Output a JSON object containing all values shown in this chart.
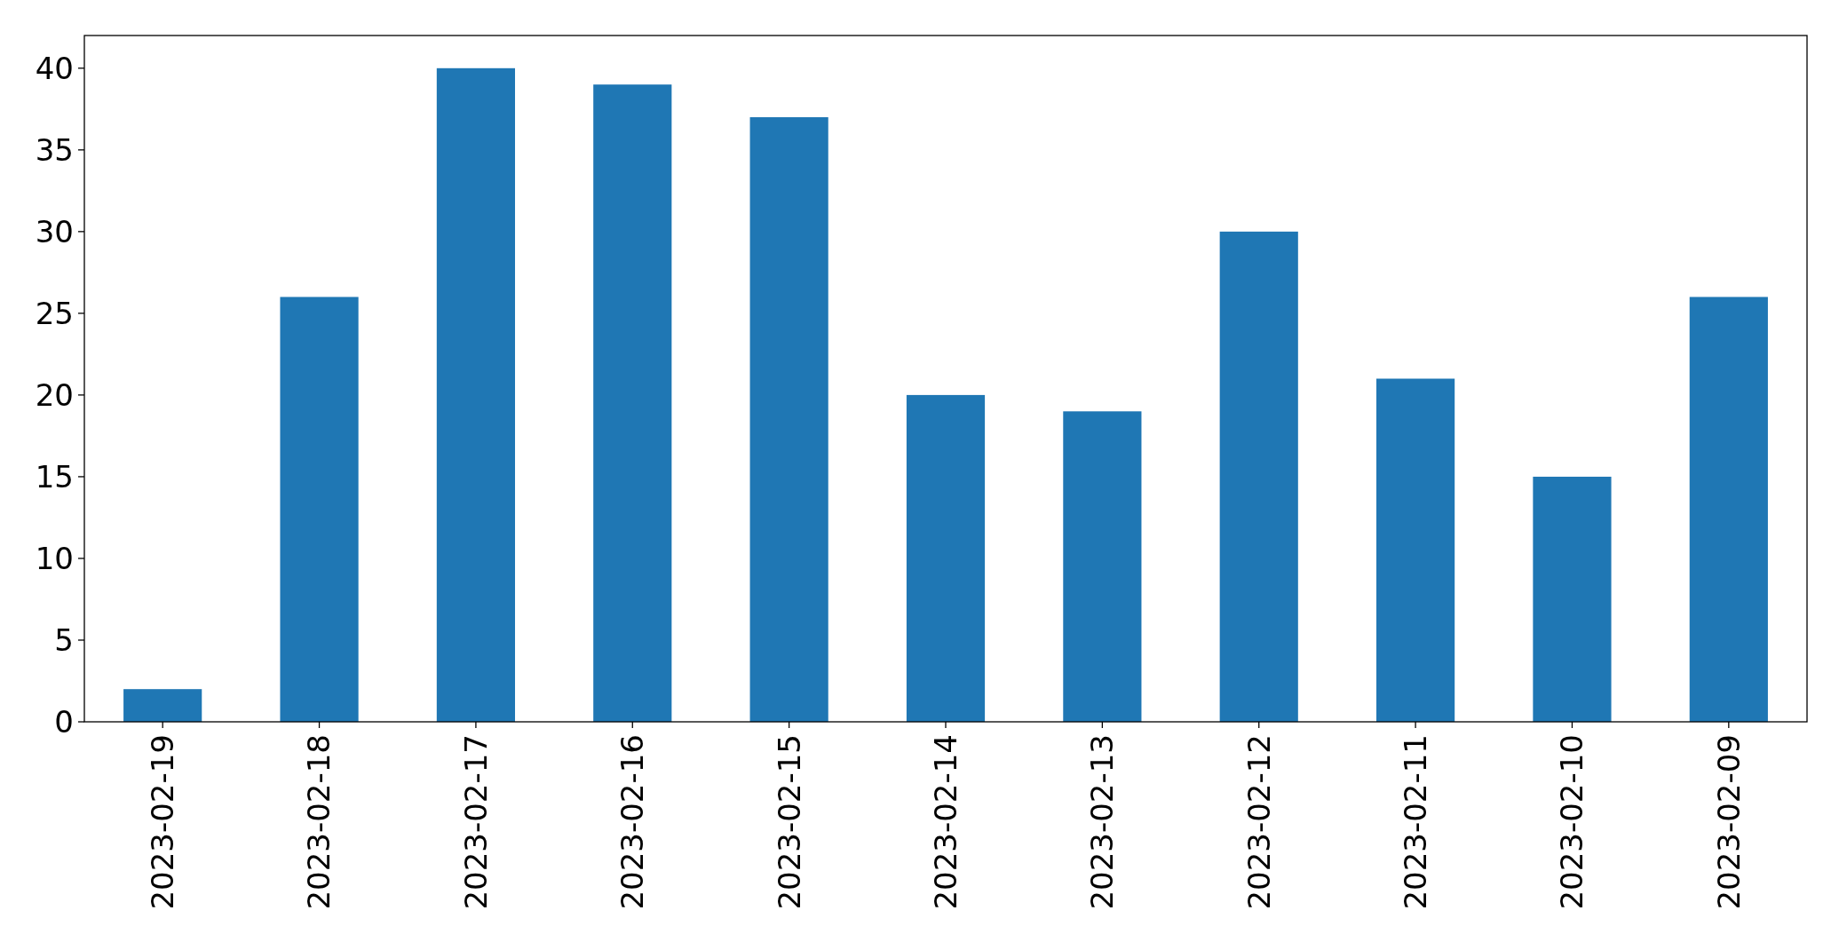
{
  "chart_data": {
    "type": "bar",
    "categories": [
      "2023-02-19",
      "2023-02-18",
      "2023-02-17",
      "2023-02-16",
      "2023-02-15",
      "2023-02-14",
      "2023-02-13",
      "2023-02-12",
      "2023-02-11",
      "2023-02-10",
      "2023-02-09"
    ],
    "values": [
      2,
      26,
      40,
      39,
      37,
      20,
      19,
      30,
      21,
      15,
      26
    ],
    "color": "#1f77b4",
    "ylim": [
      0,
      42
    ],
    "yticks": [
      0,
      5,
      10,
      15,
      20,
      25,
      30,
      35,
      40
    ]
  }
}
